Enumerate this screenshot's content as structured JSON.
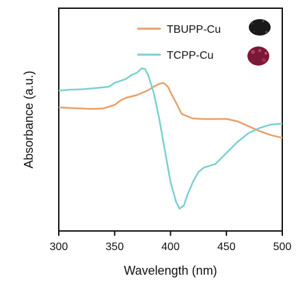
{
  "chart_data": {
    "type": "line",
    "title": "",
    "xlabel": "Wavelength (nm)",
    "ylabel": "Absorbance (a.u.)",
    "xlim": [
      300,
      500
    ],
    "ylim": [
      0,
      1
    ],
    "xticks": [
      300,
      350,
      400,
      450,
      500
    ],
    "yticks_visible": false,
    "grid": false,
    "legend_position": "top-right",
    "series": [
      {
        "name": "TBUPP-Cu",
        "color": "#E8A06B",
        "marker_icon": "black-powder-sample-icon",
        "x": [
          300,
          310,
          320,
          330,
          340,
          345,
          350,
          355,
          360,
          370,
          380,
          385,
          390,
          393,
          395,
          398,
          400,
          405,
          410,
          420,
          430,
          440,
          450,
          460,
          470,
          480,
          490,
          500
        ],
        "y": [
          0.555,
          0.552,
          0.55,
          0.548,
          0.55,
          0.558,
          0.566,
          0.585,
          0.598,
          0.61,
          0.632,
          0.648,
          0.66,
          0.665,
          0.66,
          0.645,
          0.623,
          0.575,
          0.525,
          0.505,
          0.502,
          0.502,
          0.503,
          0.492,
          0.47,
          0.448,
          0.43,
          0.418
        ]
      },
      {
        "name": "TCPP-Cu",
        "color": "#7DD0CF",
        "marker_icon": "red-powder-sample-icon",
        "x": [
          300,
          310,
          320,
          330,
          340,
          345,
          350,
          360,
          365,
          370,
          374,
          377,
          380,
          385,
          390,
          395,
          400,
          405,
          408,
          412,
          415,
          420,
          425,
          430,
          440,
          450,
          460,
          470,
          480,
          490,
          500
        ],
        "y": [
          0.63,
          0.634,
          0.636,
          0.64,
          0.645,
          0.648,
          0.665,
          0.682,
          0.7,
          0.71,
          0.73,
          0.728,
          0.7,
          0.62,
          0.5,
          0.36,
          0.22,
          0.13,
          0.1,
          0.115,
          0.16,
          0.22,
          0.265,
          0.285,
          0.3,
          0.35,
          0.4,
          0.44,
          0.463,
          0.478,
          0.482
        ]
      }
    ]
  }
}
